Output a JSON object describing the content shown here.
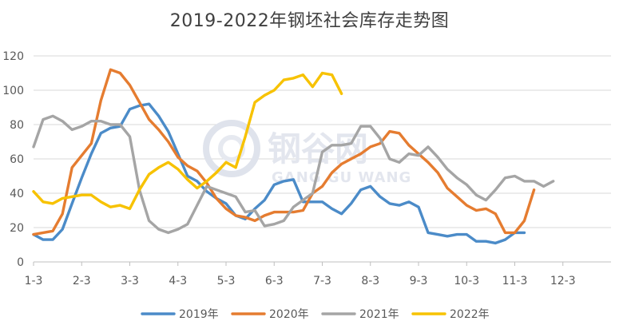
{
  "chart_data": {
    "type": "line",
    "title": "2019-2022年钢坯社会库存走势图",
    "watermark": {
      "text_cn": "钢谷网",
      "text_en": "GANG GU WANG"
    },
    "xlabel": "",
    "ylabel": "",
    "ylim": [
      0,
      120
    ],
    "yticks": [
      0,
      20,
      40,
      60,
      80,
      100,
      120
    ],
    "x_tick_labels": [
      "1-3",
      "2-3",
      "3-3",
      "4-3",
      "5-3",
      "6-3",
      "7-3",
      "8-3",
      "9-3",
      "10-3",
      "11-3",
      "12-3"
    ],
    "x_tick_index": [
      0,
      5,
      10,
      15,
      20,
      25,
      30,
      35,
      40,
      45,
      50,
      55
    ],
    "x_max_index": 60,
    "grid": true,
    "legend_position": "bottom",
    "series": [
      {
        "name": "2019年",
        "color": "#4B8BC8",
        "values": [
          16,
          13,
          13,
          19,
          34,
          49,
          63,
          75,
          78,
          79,
          89,
          91,
          92,
          85,
          76,
          63,
          50,
          47,
          41,
          37,
          34,
          27,
          25,
          31,
          36,
          45,
          47,
          48,
          35,
          35,
          35,
          31,
          28,
          34,
          42,
          44,
          38,
          34,
          33,
          35,
          32,
          17,
          16,
          15,
          16,
          16,
          12,
          12,
          11,
          13,
          17,
          17
        ]
      },
      {
        "name": "2020年",
        "color": "#E57C30",
        "values": [
          16,
          17,
          18,
          28,
          55,
          62,
          69,
          94,
          112,
          110,
          103,
          93,
          83,
          77,
          70,
          61,
          56,
          53,
          46,
          37,
          31,
          27,
          26,
          24,
          27,
          29,
          29,
          29,
          30,
          40,
          44,
          52,
          57,
          60,
          63,
          67,
          69,
          76,
          75,
          68,
          63,
          58,
          52,
          43,
          38,
          33,
          30,
          31,
          28,
          17,
          17,
          24,
          42
        ]
      },
      {
        "name": "2021年",
        "color": "#A5A5A5",
        "values": [
          67,
          83,
          85,
          82,
          77,
          79,
          82,
          82,
          80,
          80,
          73,
          42,
          24,
          19,
          17,
          19,
          22,
          33,
          44,
          42,
          40,
          38,
          29,
          30,
          21,
          22,
          24,
          32,
          36,
          40,
          64,
          68,
          68,
          69,
          79,
          79,
          72,
          60,
          58,
          63,
          62,
          67,
          61,
          54,
          49,
          45,
          39,
          36,
          42,
          49,
          50,
          47,
          47,
          44,
          47
        ]
      },
      {
        "name": "2022年",
        "color": "#F7C200",
        "values": [
          41,
          35,
          34,
          37,
          38,
          39,
          39,
          35,
          32,
          33,
          31,
          42,
          51,
          55,
          58,
          54,
          48,
          43,
          47,
          52,
          58,
          55,
          73,
          93,
          97,
          100,
          106,
          107,
          109,
          102,
          110,
          109,
          98
        ]
      }
    ]
  }
}
